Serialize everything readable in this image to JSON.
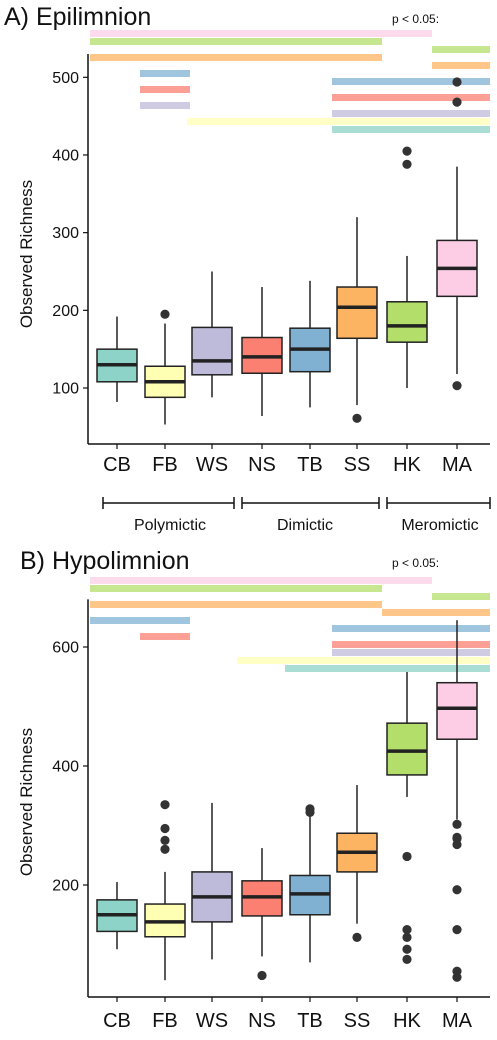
{
  "colors": {
    "CB": "#8dd3c7",
    "FB": "#ffffb3",
    "WS": "#bebada",
    "NS": "#fb8072",
    "TB": "#80b1d3",
    "SS": "#fdb462",
    "HK": "#b3de69",
    "MA": "#fccde5"
  },
  "significance_label": "p < 0.05:",
  "groups": [
    {
      "label": "Polymictic",
      "categories": [
        "CB",
        "FB",
        "WS"
      ]
    },
    {
      "label": "Dimictic",
      "categories": [
        "NS",
        "TB",
        "SS"
      ]
    },
    {
      "label": "Meromictic",
      "categories": [
        "HK",
        "MA"
      ]
    }
  ],
  "chart_data": [
    {
      "type": "box",
      "title": "A) Epilimnion",
      "ylabel": "Observed Richness",
      "ylim": [
        0,
        530
      ],
      "yticks": [
        100,
        200,
        300,
        400,
        500
      ],
      "categories": [
        "CB",
        "FB",
        "WS",
        "NS",
        "TB",
        "SS",
        "HK",
        "MA"
      ],
      "boxes": [
        {
          "category": "CB",
          "min": 82,
          "q1": 108,
          "median": 130,
          "q3": 150,
          "max": 192,
          "outliers": []
        },
        {
          "category": "FB",
          "min": 53,
          "q1": 88,
          "median": 108,
          "q3": 128,
          "max": 183,
          "outliers": [
            195
          ]
        },
        {
          "category": "WS",
          "min": 88,
          "q1": 117,
          "median": 135,
          "q3": 178,
          "max": 250,
          "outliers": []
        },
        {
          "category": "NS",
          "min": 64,
          "q1": 119,
          "median": 140,
          "q3": 165,
          "max": 230,
          "outliers": []
        },
        {
          "category": "TB",
          "min": 75,
          "q1": 121,
          "median": 150,
          "q3": 177,
          "max": 238,
          "outliers": []
        },
        {
          "category": "SS",
          "min": 78,
          "q1": 164,
          "median": 204,
          "q3": 230,
          "max": 320,
          "outliers": [
            61
          ]
        },
        {
          "category": "HK",
          "min": 100,
          "q1": 159,
          "median": 180,
          "q3": 211,
          "max": 270,
          "outliers": [
            388,
            405
          ]
        },
        {
          "category": "MA",
          "min": 118,
          "q1": 218,
          "median": 254,
          "q3": 290,
          "max": 385,
          "outliers": [
            103,
            468,
            494
          ]
        }
      ],
      "significance_bars": [
        {
          "color_of": "MA",
          "from": "CB",
          "to": "HK"
        },
        {
          "color_of": "HK",
          "from": "CB",
          "to": "SS"
        },
        {
          "color_of": "HK",
          "from": "MA",
          "to": "MA"
        },
        {
          "color_of": "SS",
          "from": "CB",
          "to": "SS"
        },
        {
          "color_of": "SS",
          "from": "MA",
          "to": "MA"
        },
        {
          "color_of": "TB",
          "from": "FB",
          "to": "FB"
        },
        {
          "color_of": "TB",
          "from": "SS",
          "to": "MA"
        },
        {
          "color_of": "NS",
          "from": "FB",
          "to": "FB"
        },
        {
          "color_of": "NS",
          "from": "SS",
          "to": "MA"
        },
        {
          "color_of": "WS",
          "from": "FB",
          "to": "FB"
        },
        {
          "color_of": "WS",
          "from": "SS",
          "to": "MA"
        },
        {
          "color_of": "FB",
          "from": "WS",
          "to": "MA"
        },
        {
          "color_of": "CB",
          "from": "SS",
          "to": "MA"
        }
      ]
    },
    {
      "type": "box",
      "title": "B) Hypolimnion",
      "ylabel": "Observed Richness",
      "ylim": [
        10,
        680
      ],
      "yticks": [
        200,
        400,
        600
      ],
      "categories": [
        "CB",
        "FB",
        "WS",
        "NS",
        "TB",
        "SS",
        "HK",
        "MA"
      ],
      "boxes": [
        {
          "category": "CB",
          "min": 92,
          "q1": 122,
          "median": 150,
          "q3": 175,
          "max": 205,
          "outliers": []
        },
        {
          "category": "FB",
          "min": 40,
          "q1": 113,
          "median": 138,
          "q3": 168,
          "max": 222,
          "outliers": [
            260,
            275,
            295,
            335
          ]
        },
        {
          "category": "WS",
          "min": 75,
          "q1": 138,
          "median": 180,
          "q3": 222,
          "max": 338,
          "outliers": []
        },
        {
          "category": "NS",
          "min": 80,
          "q1": 148,
          "median": 180,
          "q3": 207,
          "max": 262,
          "outliers": [
            48
          ]
        },
        {
          "category": "TB",
          "min": 70,
          "q1": 150,
          "median": 185,
          "q3": 216,
          "max": 318,
          "outliers": [
            322,
            328
          ]
        },
        {
          "category": "SS",
          "min": 135,
          "q1": 222,
          "median": 255,
          "q3": 287,
          "max": 368,
          "outliers": [
            112
          ]
        },
        {
          "category": "HK",
          "min": 348,
          "q1": 385,
          "median": 425,
          "q3": 472,
          "max": 558,
          "outliers": [
            75,
            92,
            112,
            125,
            248
          ]
        },
        {
          "category": "MA",
          "min": 310,
          "q1": 445,
          "median": 497,
          "q3": 540,
          "max": 645,
          "outliers": [
            45,
            55,
            125,
            192,
            268,
            278,
            280,
            302
          ]
        }
      ],
      "significance_bars": [
        {
          "color_of": "MA",
          "from": "CB",
          "to": "HK"
        },
        {
          "color_of": "HK",
          "from": "CB",
          "to": "SS"
        },
        {
          "color_of": "HK",
          "from": "MA",
          "to": "MA"
        },
        {
          "color_of": "SS",
          "from": "CB",
          "to": "SS"
        },
        {
          "color_of": "SS",
          "from": "HK",
          "to": "MA"
        },
        {
          "color_of": "TB",
          "from": "CB",
          "to": "FB"
        },
        {
          "color_of": "TB",
          "from": "SS",
          "to": "MA"
        },
        {
          "color_of": "NS",
          "from": "FB",
          "to": "FB"
        },
        {
          "color_of": "NS",
          "from": "SS",
          "to": "MA"
        },
        {
          "color_of": "WS",
          "from": "SS",
          "to": "MA"
        },
        {
          "color_of": "FB",
          "from": "NS",
          "to": "MA"
        },
        {
          "color_of": "CB",
          "from": "TB",
          "to": "MA"
        }
      ]
    }
  ]
}
